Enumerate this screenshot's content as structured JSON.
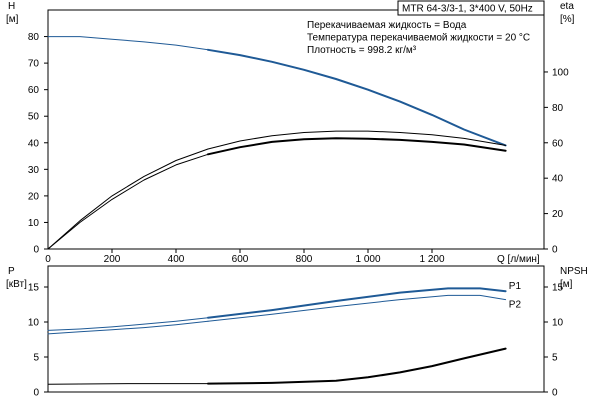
{
  "title_box": "MTR 64-3/3-1, 3*400 V, 50Hz",
  "info": [
    "Перекачиваемая жидкость = Вода",
    "Температура перекачиваемой жидкости = 20 °C",
    "Плотность = 998.2 кг/м³"
  ],
  "colors": {
    "blue": "#1f5a96",
    "black": "#000000",
    "grid": "#000000"
  },
  "chart_data": [
    {
      "type": "line",
      "panel": "upper",
      "x_label": "Q [л/мин]",
      "x_range": [
        0,
        1550
      ],
      "x_ticks": [
        0,
        200,
        400,
        600,
        800,
        1000,
        1200
      ],
      "x_tick_labels": [
        "0",
        "200",
        "400",
        "600",
        "800",
        "1 000",
        "1 200"
      ],
      "y_left": {
        "label": [
          "H",
          "[м]"
        ],
        "range": [
          0,
          90
        ],
        "ticks": [
          0,
          10,
          20,
          30,
          40,
          50,
          60,
          70,
          80
        ]
      },
      "y_right": {
        "label": [
          "eta",
          "[%]"
        ],
        "range": [
          0,
          135
        ],
        "ticks": [
          0,
          20,
          40,
          60,
          80,
          100
        ]
      },
      "series": [
        {
          "axis": "left",
          "color": "blue",
          "width": 1,
          "x": [
            0,
            100,
            200,
            300,
            400,
            500
          ],
          "y": [
            80,
            80,
            79,
            78,
            76.8,
            75
          ]
        },
        {
          "axis": "left",
          "color": "blue",
          "width": 2,
          "x": [
            500,
            600,
            700,
            800,
            900,
            1000,
            1100,
            1200,
            1300,
            1430
          ],
          "y": [
            75,
            73,
            70.5,
            67.5,
            64,
            60,
            55.5,
            50.5,
            45,
            39
          ]
        },
        {
          "axis": "right",
          "color": "black",
          "width": 1,
          "x": [
            0,
            100,
            200,
            300,
            400,
            500
          ],
          "y": [
            0,
            16,
            30,
            41,
            50,
            56.5
          ]
        },
        {
          "axis": "right",
          "color": "black",
          "width": 1,
          "x": [
            500,
            600,
            700,
            800,
            900,
            1000,
            1100,
            1200,
            1300,
            1430
          ],
          "y": [
            56.5,
            61,
            64,
            65.8,
            66.6,
            66.6,
            65.8,
            64.5,
            62.5,
            58.5
          ]
        },
        {
          "axis": "right",
          "color": "black",
          "width": 1,
          "x": [
            0,
            100,
            200,
            300,
            400,
            500
          ],
          "y": [
            0,
            15,
            28,
            39,
            47.5,
            53.5
          ]
        },
        {
          "axis": "right",
          "color": "black",
          "width": 2,
          "x": [
            500,
            600,
            700,
            800,
            900,
            1000,
            1100,
            1200,
            1300,
            1430
          ],
          "y": [
            53.5,
            57.5,
            60.5,
            62,
            62.6,
            62.3,
            61.6,
            60.5,
            59,
            55.5
          ]
        }
      ]
    },
    {
      "type": "line",
      "panel": "lower",
      "x_range": [
        0,
        1550
      ],
      "y_left": {
        "label": [
          "P",
          "[кВт]"
        ],
        "range": [
          0,
          18
        ],
        "ticks": [
          0,
          5,
          10,
          15
        ]
      },
      "y_right": {
        "label": [
          "NPSH",
          "[м]"
        ],
        "range": [
          0,
          18
        ],
        "ticks": [
          0,
          5,
          10,
          15
        ]
      },
      "series": [
        {
          "name": "P1",
          "axis": "left",
          "color": "blue",
          "width": 1,
          "x": [
            0,
            100,
            200,
            300,
            400,
            500
          ],
          "y": [
            8.8,
            9.0,
            9.3,
            9.7,
            10.1,
            10.6
          ]
        },
        {
          "name": "P1",
          "axis": "left",
          "color": "blue",
          "width": 2,
          "x": [
            500,
            700,
            900,
            1100,
            1250,
            1350,
            1430
          ],
          "y": [
            10.6,
            11.7,
            13.0,
            14.2,
            14.8,
            14.8,
            14.4
          ]
        },
        {
          "name": "P2",
          "axis": "left",
          "color": "blue",
          "width": 1,
          "x": [
            0,
            100,
            200,
            300,
            400,
            500
          ],
          "y": [
            8.3,
            8.6,
            8.9,
            9.2,
            9.6,
            10.1
          ]
        },
        {
          "name": "P2",
          "axis": "left",
          "color": "blue",
          "width": 1,
          "x": [
            500,
            700,
            900,
            1100,
            1250,
            1350,
            1430
          ],
          "y": [
            10.1,
            11.1,
            12.2,
            13.2,
            13.8,
            13.8,
            13.2
          ]
        },
        {
          "axis": "right",
          "color": "black",
          "width": 1,
          "x": [
            0,
            250,
            500
          ],
          "y": [
            1.1,
            1.2,
            1.2
          ]
        },
        {
          "axis": "right",
          "color": "black",
          "width": 2,
          "x": [
            500,
            700,
            900,
            1000,
            1100,
            1200,
            1300,
            1430
          ],
          "y": [
            1.2,
            1.3,
            1.6,
            2.1,
            2.8,
            3.7,
            4.8,
            6.2
          ]
        }
      ],
      "labels": [
        {
          "text": "P1",
          "x": 1440,
          "y": 15.2
        },
        {
          "text": "P2",
          "x": 1440,
          "y": 12.6
        }
      ]
    }
  ]
}
